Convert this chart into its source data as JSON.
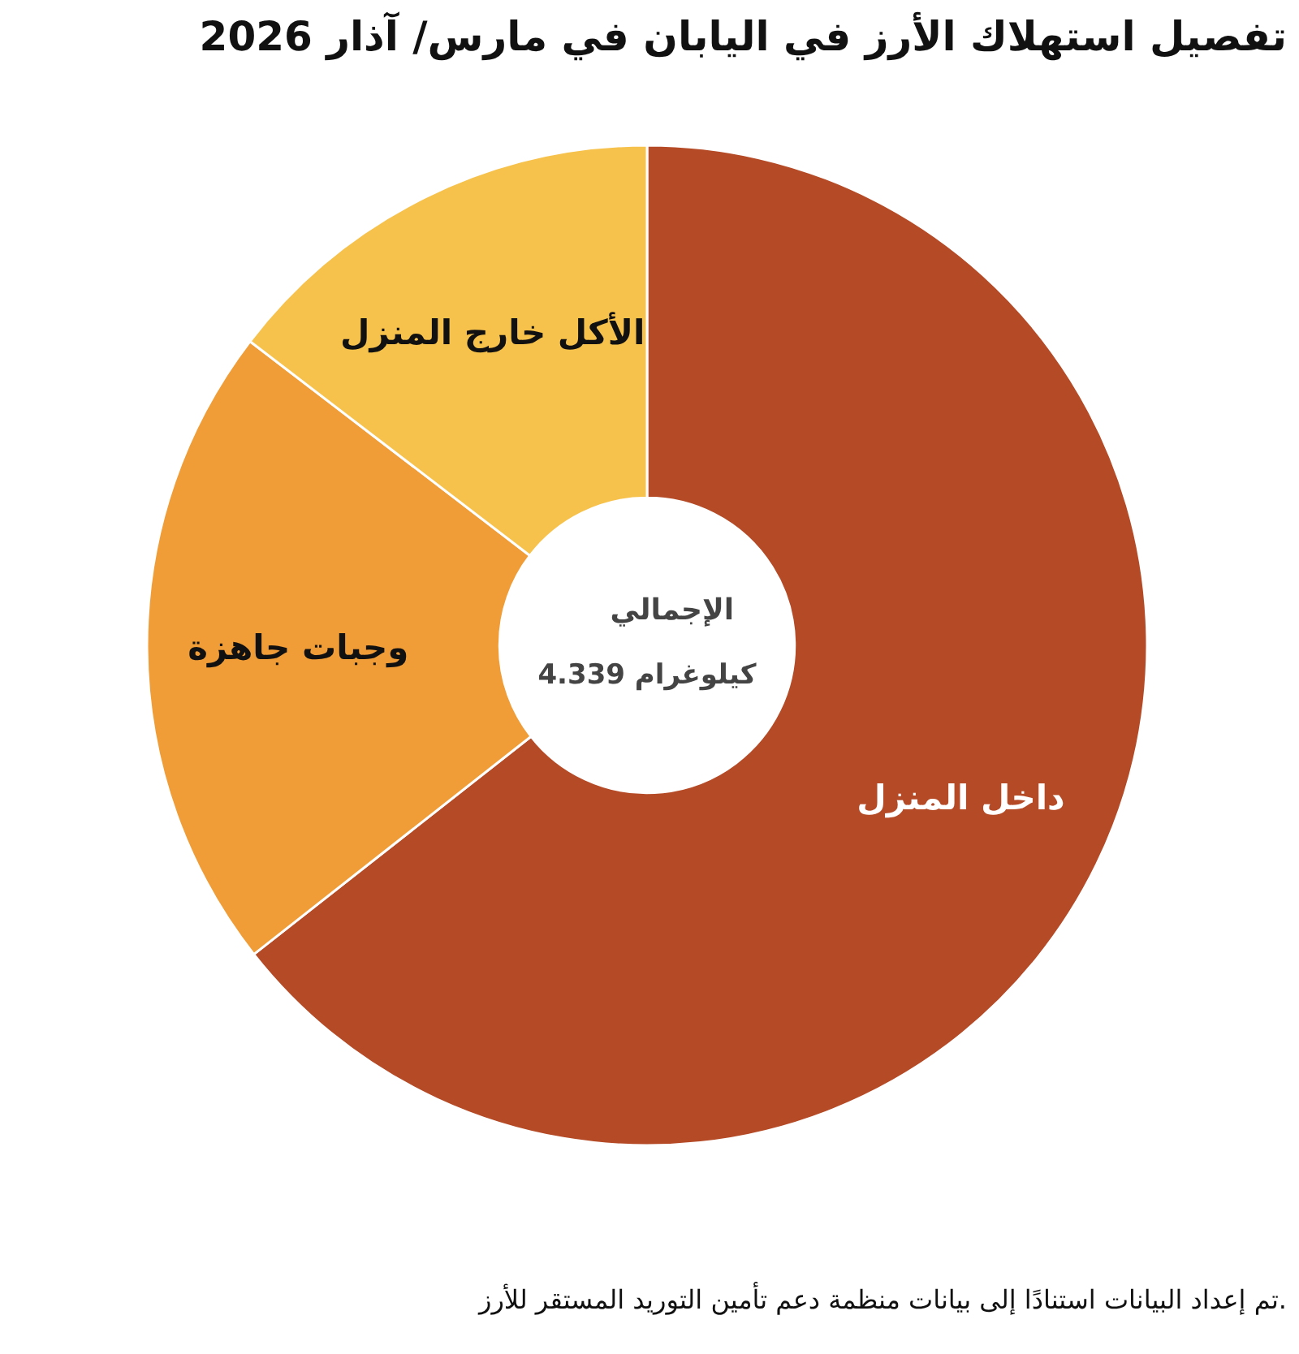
{
  "chart_data": {
    "type": "donut",
    "title": "تفصيل استهلاك الأرز في اليابان في مارس/ آذار 2026",
    "categories": [
      "داخل المنزل",
      "وجبات جاهزة",
      "الأكل خارج المنزل"
    ],
    "values": [
      64.4,
      21.0,
      14.6
    ],
    "colors": [
      "#b54a26",
      "#f09d38",
      "#f7c24c"
    ],
    "annotations": [
      "الإجمالي",
      "4.339 كيلوغرام",
      "تم إعداد البيانات استنادًا إلى بيانات منظمة دعم تأمين التوريد المستقر للأرز."
    ]
  }
}
